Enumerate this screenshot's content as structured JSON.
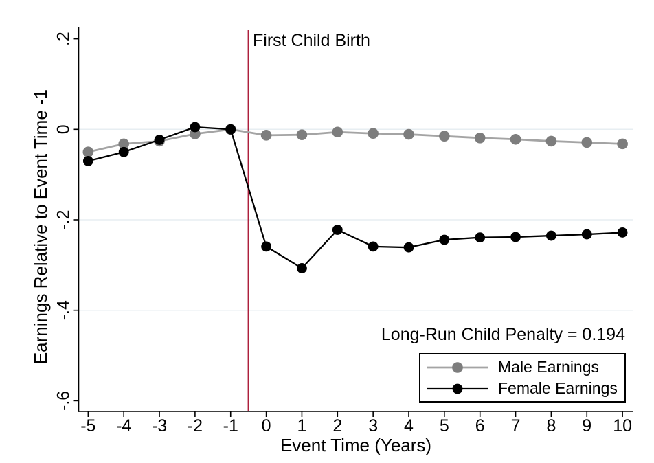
{
  "chart_data": {
    "type": "line",
    "title": "",
    "xlabel": "Event Time (Years)",
    "ylabel": "Earnings Relative to Event Time -1",
    "x": [
      -5,
      -4,
      -3,
      -2,
      -1,
      0,
      1,
      2,
      3,
      4,
      5,
      6,
      7,
      8,
      9,
      10
    ],
    "series": [
      {
        "id": "male",
        "name": "Male Earnings",
        "line_color": "#a4a4a4",
        "marker_color": "#7d7d7d",
        "values": [
          -0.05,
          -0.032,
          -0.026,
          -0.01,
          0.0,
          -0.013,
          -0.012,
          -0.006,
          -0.009,
          -0.011,
          -0.015,
          -0.019,
          -0.022,
          -0.026,
          -0.029,
          -0.032
        ]
      },
      {
        "id": "female",
        "name": "Female Earnings",
        "line_color": "#000000",
        "marker_color": "#000000",
        "values": [
          -0.07,
          -0.05,
          -0.023,
          0.005,
          0.0,
          -0.259,
          -0.307,
          -0.222,
          -0.259,
          -0.261,
          -0.244,
          -0.239,
          -0.238,
          -0.235,
          -0.232,
          -0.228
        ]
      }
    ],
    "xticks": {
      "values": [
        -5,
        -4,
        -3,
        -2,
        -1,
        0,
        1,
        2,
        3,
        4,
        5,
        6,
        7,
        8,
        9,
        10
      ],
      "labels": [
        "-5",
        "-4",
        "-3",
        "-2",
        "-1",
        "0",
        "1",
        "2",
        "3",
        "4",
        "5",
        "6",
        "7",
        "8",
        "9",
        "10"
      ]
    },
    "yticks": {
      "values": [
        0.2,
        0,
        -0.2,
        -0.4,
        -0.6
      ],
      "labels": [
        ".2",
        "0",
        "-.2",
        "-.4",
        "-.6"
      ]
    },
    "gridlines_y": [
      0,
      -0.2,
      -0.4
    ],
    "grid_color": "#e7eef2",
    "axis_color": "#000000",
    "xlim": [
      -5.3,
      10.3
    ],
    "ylim": [
      -0.62,
      0.23
    ],
    "vline": {
      "x": -0.5,
      "label": "First Child Birth",
      "color": "#ad203d"
    },
    "annotation": "Long-Run Child Penalty = 0.194",
    "legend": {
      "position": "bottom-right",
      "border": true
    }
  }
}
